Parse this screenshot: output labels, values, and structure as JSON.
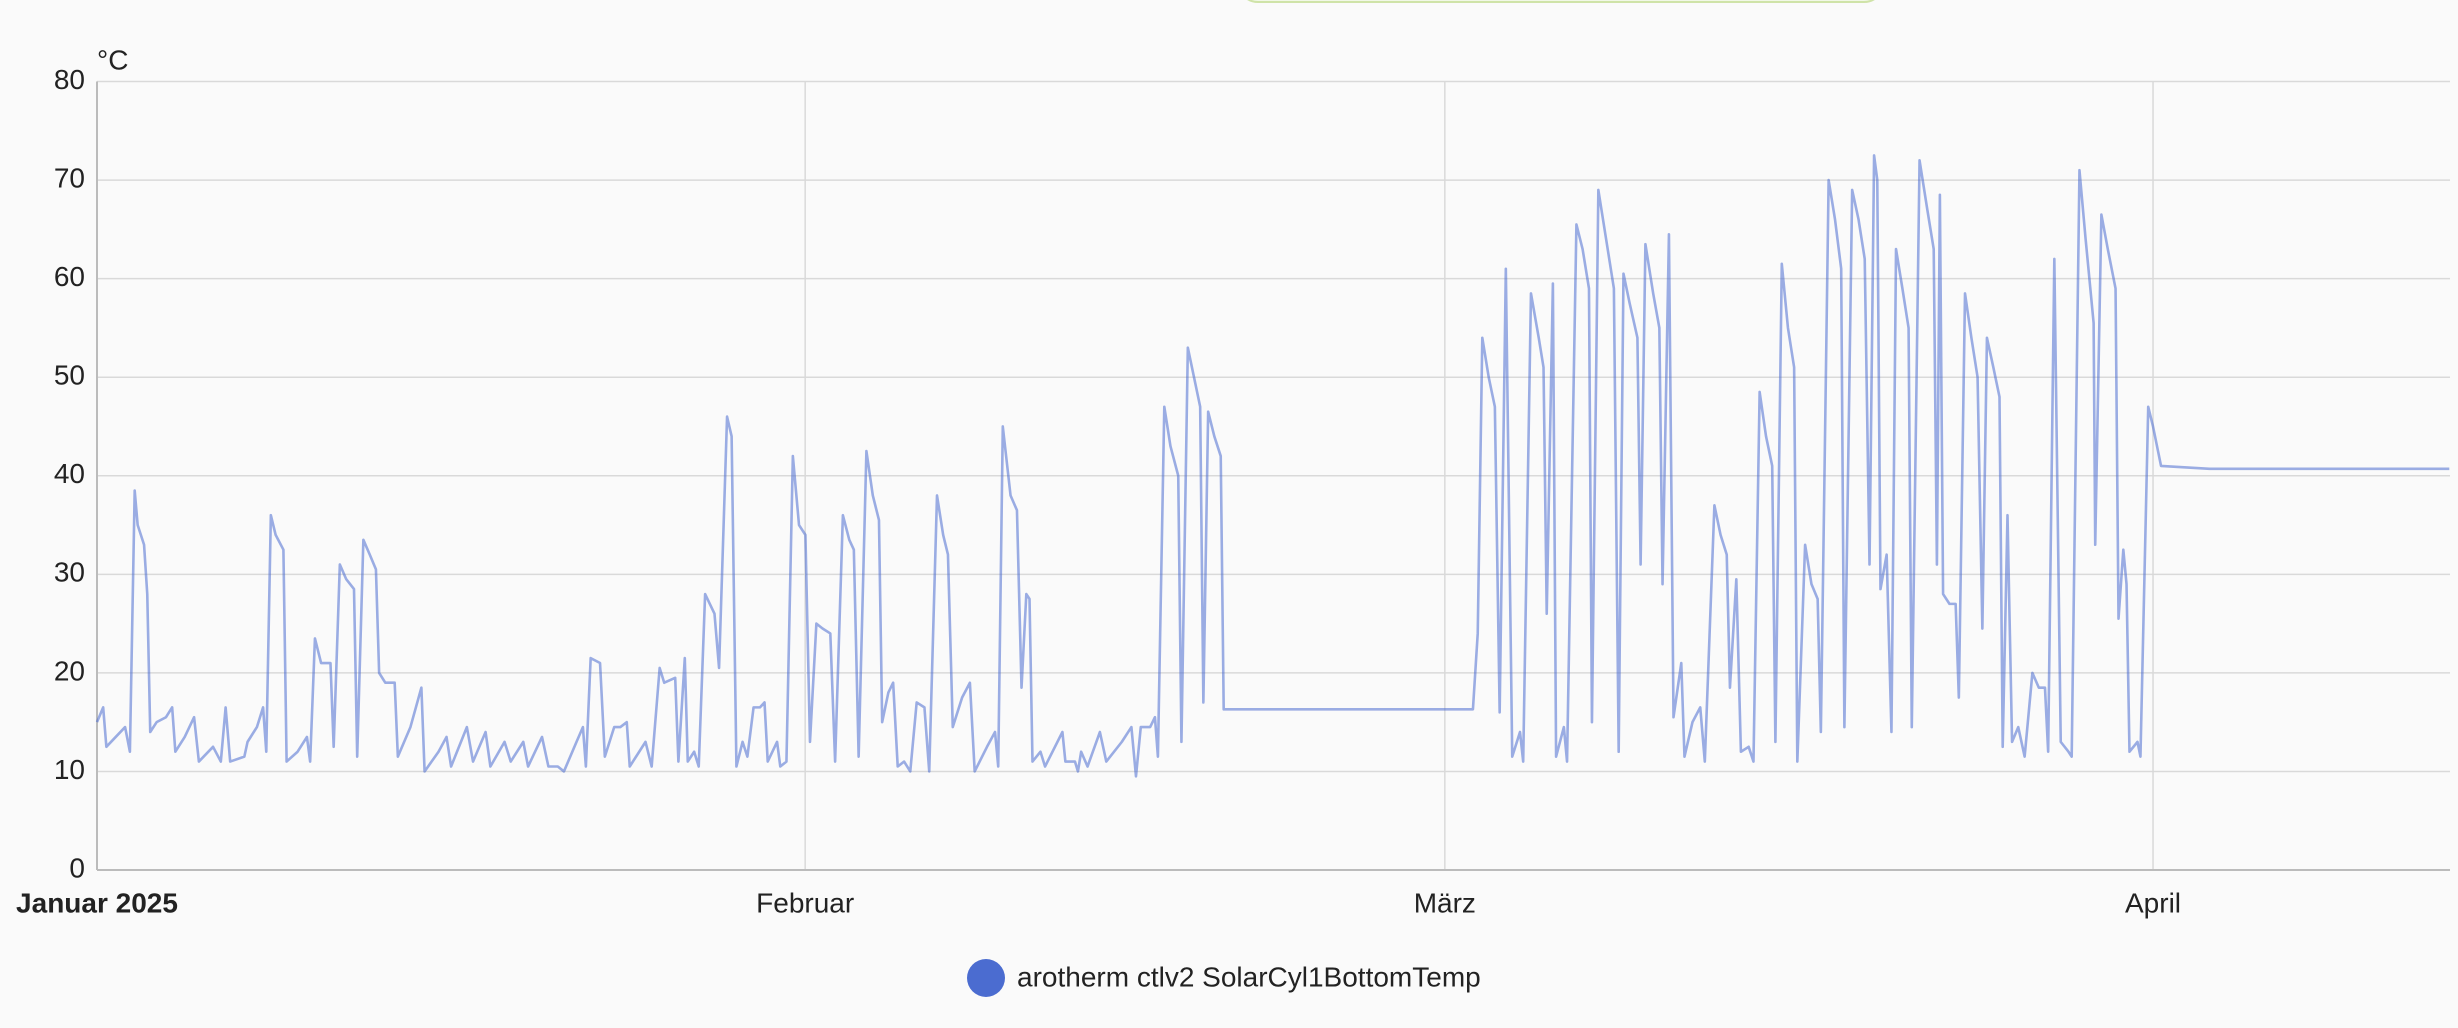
{
  "chart_data": {
    "type": "line",
    "y_unit": "°C",
    "xlim": [
      0,
      103
    ],
    "xticks": [
      {
        "value": 0,
        "label": "Januar 2025"
      },
      {
        "value": 31,
        "label": "Februar"
      },
      {
        "value": 59,
        "label": "März"
      },
      {
        "value": 90,
        "label": "April"
      }
    ],
    "ylim": [
      0,
      80
    ],
    "yticks": [
      0,
      10,
      20,
      30,
      40,
      50,
      60,
      70,
      80
    ],
    "grid": true,
    "legend": "bottom",
    "x": [
      0,
      0.27,
      0.41,
      1.23,
      1.44,
      1.65,
      1.78,
      2.06,
      2.2,
      2.33,
      2.61,
      3.02,
      3.29,
      3.43,
      3.84,
      4.25,
      4.46,
      5.08,
      5.42,
      5.63,
      5.83,
      6.45,
      6.59,
      7.0,
      7.27,
      7.41,
      7.61,
      7.82,
      8.16,
      8.3,
      8.78,
      9.19,
      9.33,
      9.54,
      9.81,
      10.22,
      10.36,
      10.63,
      10.91,
      11.25,
      11.39,
      11.66,
      11.94,
      12.21,
      12.35,
      12.62,
      13.03,
      13.17,
      13.72,
      14.2,
      14.34,
      14.95,
      15.3,
      15.5,
      16.19,
      16.46,
      17.01,
      17.22,
      17.84,
      18.11,
      18.66,
      18.87,
      19.48,
      19.76,
      20.17,
      20.44,
      20.99,
      21.27,
      21.4,
      21.61,
      22.02,
      22.23,
      22.64,
      22.91,
      23.19,
      23.32,
      24.01,
      24.28,
      24.63,
      24.83,
      25.31,
      25.45,
      25.73,
      25.86,
      26.14,
      26.34,
      26.62,
      27.03,
      27.23,
      27.58,
      27.78,
      27.99,
      28.26,
      28.47,
      28.74,
      29.02,
      29.22,
      29.36,
      29.77,
      29.91,
      30.18,
      30.46,
      30.73,
      31.01,
      31.21,
      31.49,
      31.76,
      32.1,
      32.31,
      32.65,
      32.93,
      33.13,
      33.34,
      33.68,
      33.96,
      34.23,
      34.37,
      34.64,
      34.85,
      35.05,
      35.33,
      35.6,
      35.88,
      36.22,
      36.43,
      36.77,
      37.04,
      37.25,
      37.46,
      37.87,
      38.21,
      38.42,
      38.96,
      39.31,
      39.45,
      39.65,
      39.99,
      40.27,
      40.47,
      40.68,
      40.82,
      40.95,
      41.3,
      41.5,
      42.26,
      42.39,
      42.81,
      42.94,
      43.08,
      43.36,
      43.9,
      44.18,
      44.86,
      45.28,
      45.48,
      45.69,
      46.1,
      46.31,
      46.44,
      46.72,
      46.99,
      47.33,
      47.47,
      47.75,
      48.02,
      48.29,
      48.43,
      48.64,
      48.91,
      49.19,
      49.32,
      60.23,
      60.44,
      60.64,
      60.92,
      61.19,
      61.4,
      61.67,
      61.95,
      62.29,
      62.43,
      62.77,
      63.11,
      63.32,
      63.46,
      63.73,
      63.87,
      64.21,
      64.35,
      64.76,
      65.03,
      65.31,
      65.44,
      65.72,
      66.06,
      66.4,
      66.61,
      66.82,
      67.09,
      67.43,
      67.57,
      67.78,
      68.12,
      68.39,
      68.53,
      68.81,
      69.01,
      69.35,
      69.49,
      69.84,
      70.18,
      70.38,
      70.8,
      71.07,
      71.34,
      71.48,
      71.76,
      71.96,
      72.3,
      72.51,
      72.78,
      73.06,
      73.33,
      73.47,
      73.75,
      74.02,
      74.29,
      74.43,
      74.77,
      75.05,
      75.32,
      75.46,
      75.8,
      76.08,
      76.35,
      76.49,
      76.83,
      77.11,
      77.38,
      77.59,
      77.79,
      77.93,
      78.07,
      78.34,
      78.55,
      78.75,
      79.03,
      79.3,
      79.44,
      79.78,
      80.12,
      80.4,
      80.54,
      80.67,
      80.81,
      81.09,
      81.36,
      81.5,
      81.77,
      82.05,
      82.32,
      82.53,
      82.73,
      83.01,
      83.28,
      83.42,
      83.63,
      83.83,
      84.1,
      84.38,
      84.72,
      85.0,
      85.27,
      85.41,
      85.68,
      85.96,
      86.3,
      86.44,
      86.78,
      87.05,
      87.4,
      87.47,
      87.74,
      88.02,
      88.36,
      88.49,
      88.7,
      88.84,
      88.97,
      89.32,
      89.45,
      89.79,
      90.0,
      90.35,
      92.47,
      102.97
    ],
    "series": [
      {
        "name": "arotherm ctlv2 SolarCyl1BottomTemp",
        "color": "#4b6cd0",
        "values": [
          15,
          16.5,
          12.5,
          14.5,
          12,
          38.5,
          35,
          33,
          28,
          14,
          15,
          15.5,
          16.5,
          12,
          13.5,
          15.5,
          11,
          12.5,
          11,
          16.5,
          11,
          11.5,
          13,
          14.5,
          16.5,
          12,
          36,
          34,
          32.5,
          11,
          12,
          13.5,
          11,
          23.5,
          21,
          21,
          12.5,
          31,
          29.5,
          28.5,
          11.5,
          33.5,
          32,
          30.5,
          20,
          19,
          19,
          11.5,
          14.5,
          18.5,
          10,
          12,
          13.5,
          10.5,
          14.5,
          11,
          14,
          10.5,
          13,
          11,
          13,
          10.5,
          13.5,
          10.5,
          10.5,
          10,
          13,
          14.5,
          10.5,
          21.5,
          21,
          11.5,
          14.5,
          14.5,
          15,
          10.5,
          13,
          10.5,
          20.5,
          19,
          19.5,
          11,
          21.5,
          11,
          12,
          10.5,
          28,
          26,
          20.5,
          46,
          44,
          10.5,
          13,
          11.5,
          16.5,
          16.5,
          17,
          11,
          13,
          10.5,
          11,
          42,
          35,
          34,
          13,
          25,
          24.5,
          24,
          11,
          36,
          33.5,
          32.5,
          11.5,
          42.5,
          38,
          35.5,
          15,
          18,
          19,
          10.5,
          11,
          10,
          17,
          16.5,
          10,
          38,
          34,
          32,
          14.5,
          17.5,
          19,
          10,
          12.5,
          14,
          10.5,
          45,
          38,
          36.5,
          18.5,
          28,
          27.5,
          11,
          12,
          10.5,
          14,
          11,
          11,
          10,
          12,
          10.5,
          14,
          11,
          13,
          14.5,
          9.5,
          14.5,
          14.5,
          15.5,
          11.5,
          47,
          43,
          40,
          13,
          53,
          50,
          47,
          17,
          46.5,
          44,
          42,
          16.3,
          16.3,
          24,
          54,
          50,
          47,
          16,
          61,
          11.5,
          14,
          11,
          58.5,
          54,
          51,
          26,
          59.5,
          11.5,
          14.5,
          11,
          65.5,
          63,
          59,
          15,
          69,
          64,
          59,
          12,
          60.5,
          57.5,
          54,
          31,
          63.5,
          58.5,
          55,
          29,
          64.5,
          15.5,
          21,
          11.5,
          15,
          16.5,
          11,
          37,
          34,
          32,
          18.5,
          29.5,
          12,
          12.5,
          11,
          48.5,
          44,
          41,
          13,
          61.5,
          55,
          51,
          11,
          33,
          29,
          27.5,
          14,
          70,
          66,
          61,
          14.5,
          69,
          66,
          62,
          31,
          72.5,
          70,
          28.5,
          32,
          14,
          63,
          59,
          55,
          14.5,
          72,
          67,
          63,
          31,
          68.5,
          28,
          27,
          27,
          17.5,
          58.5,
          54,
          50,
          24.5,
          54,
          51,
          48,
          12.5,
          36,
          13,
          14.5,
          11.5,
          20,
          18.5,
          18.5,
          12,
          62,
          13,
          12,
          11.5,
          71,
          64,
          55.5,
          33,
          66.5,
          63,
          59,
          25.5,
          32.5,
          29,
          12,
          13,
          11.5,
          47,
          45,
          41,
          40.7,
          40.7
        ]
      }
    ]
  }
}
